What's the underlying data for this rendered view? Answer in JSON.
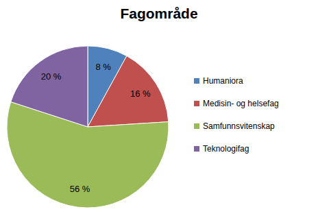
{
  "chart_data": {
    "type": "pie",
    "title": "Fagområde",
    "categories": [
      "Humaniora",
      "Medisin- og helsefag",
      "Samfunnsvitenskap",
      "Teknologifag"
    ],
    "values": [
      8,
      16,
      56,
      20
    ],
    "value_labels": [
      "8 %",
      "16 %",
      "56 %",
      "20 %"
    ],
    "colors": [
      "#4f81bd",
      "#c0504d",
      "#9bbb59",
      "#8064a2"
    ],
    "data_labels": true,
    "legend": "right"
  }
}
